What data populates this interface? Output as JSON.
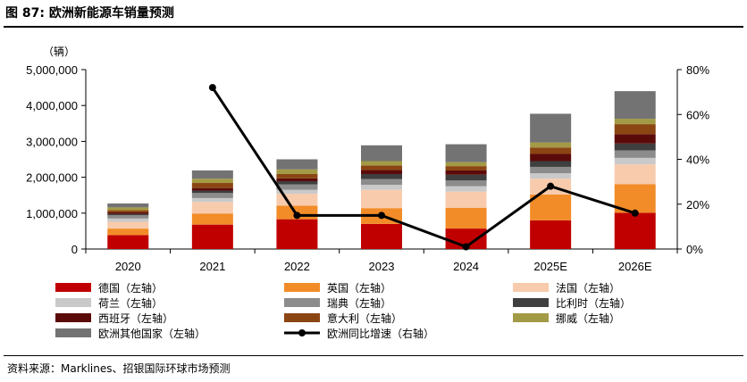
{
  "figure": {
    "title": "图 87: 欧洲新能源车销量预测",
    "source": "资料来源：Marklines、招银国际环球市场预测",
    "unit_label": "（辆）"
  },
  "chart_data": {
    "type": "bar",
    "stacked": true,
    "categories": [
      "2020",
      "2021",
      "2022",
      "2023",
      "2024",
      "2025E",
      "2026E"
    ],
    "left_axis": {
      "ylim": [
        0,
        5000000
      ],
      "ticks": [
        "0",
        "1,000,000",
        "2,000,000",
        "3,000,000",
        "4,000,000",
        "5,000,000"
      ]
    },
    "right_axis": {
      "ylim": [
        0,
        80
      ],
      "ticks": [
        "0%",
        "20%",
        "40%",
        "60%",
        "80%"
      ]
    },
    "series": [
      {
        "name": "德国（左轴）",
        "color": "#C00000",
        "values": [
          390000,
          680000,
          830000,
          700000,
          570000,
          800000,
          1010000
        ]
      },
      {
        "name": "英国（左轴）",
        "color": "#F28C28",
        "values": [
          180000,
          310000,
          380000,
          440000,
          580000,
          720000,
          800000
        ]
      },
      {
        "name": "法国（左轴）",
        "color": "#F8CBAD",
        "values": [
          190000,
          320000,
          330000,
          510000,
          450000,
          440000,
          550000
        ]
      },
      {
        "name": "荷兰（左轴）",
        "color": "#C9C9C9",
        "values": [
          90000,
          110000,
          110000,
          140000,
          150000,
          150000,
          180000
        ]
      },
      {
        "name": "瑞典（左轴）",
        "color": "#8C8C8C",
        "values": [
          90000,
          140000,
          150000,
          160000,
          160000,
          180000,
          210000
        ]
      },
      {
        "name": "比利时（左轴）",
        "color": "#3F3F3F",
        "values": [
          40000,
          70000,
          90000,
          140000,
          160000,
          160000,
          190000
        ]
      },
      {
        "name": "西班牙（左轴）",
        "color": "#5B0A0A",
        "values": [
          40000,
          70000,
          80000,
          110000,
          120000,
          200000,
          260000
        ]
      },
      {
        "name": "意大利（左轴）",
        "color": "#8B4513",
        "values": [
          60000,
          140000,
          120000,
          130000,
          120000,
          180000,
          280000
        ]
      },
      {
        "name": "挪威（左轴）",
        "color": "#A39A45",
        "values": [
          80000,
          120000,
          130000,
          120000,
          110000,
          140000,
          150000
        ]
      },
      {
        "name": "欧洲其他国家（左轴）",
        "color": "#737373",
        "values": [
          110000,
          230000,
          280000,
          440000,
          500000,
          800000,
          770000
        ]
      }
    ],
    "line_series": {
      "name": "欧洲同比增速（右轴）",
      "axis": "right",
      "color": "#000000",
      "values": [
        null,
        72,
        15,
        15,
        1,
        28,
        16
      ]
    }
  }
}
